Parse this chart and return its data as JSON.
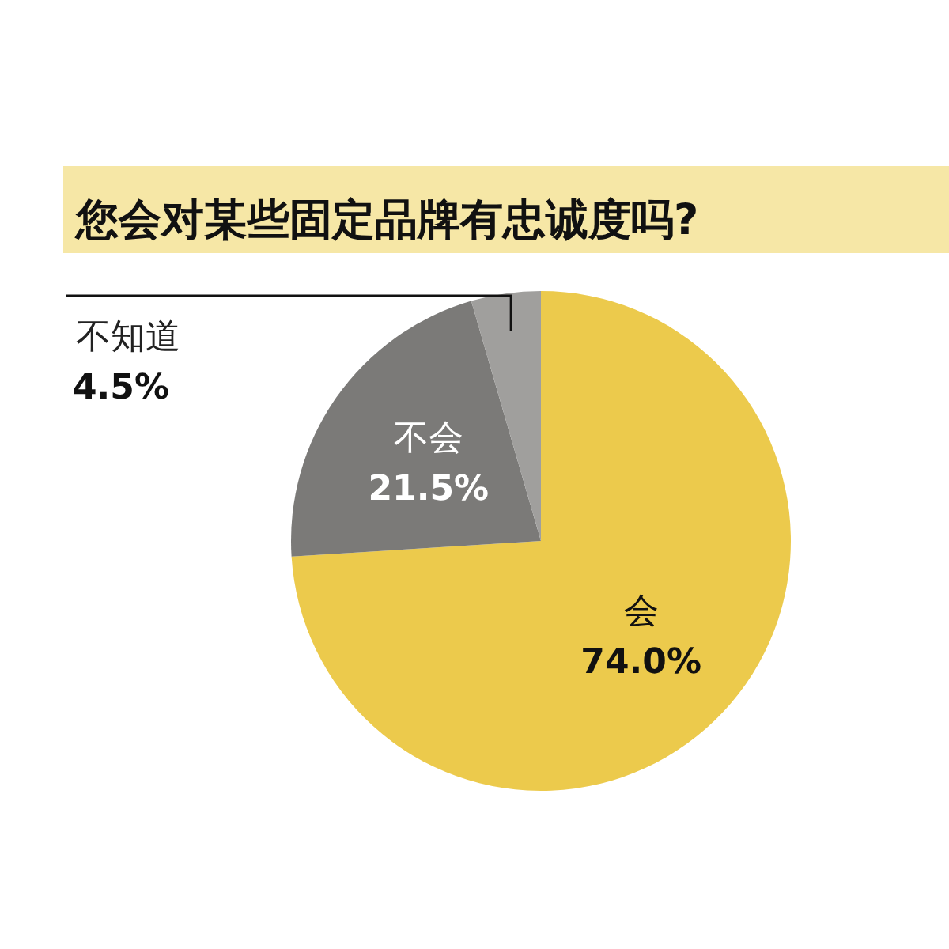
{
  "chart_data": {
    "type": "pie",
    "title": "您会对某些固定品牌有忠诚度吗?",
    "categories": [
      "会",
      "不会",
      "不知道"
    ],
    "values": [
      74.0,
      21.5,
      4.5
    ],
    "colors": [
      "#ecca4c",
      "#7b7a78",
      "#a09f9d"
    ],
    "value_labels": [
      "74.0%",
      "21.5%",
      "4.5%"
    ]
  }
}
